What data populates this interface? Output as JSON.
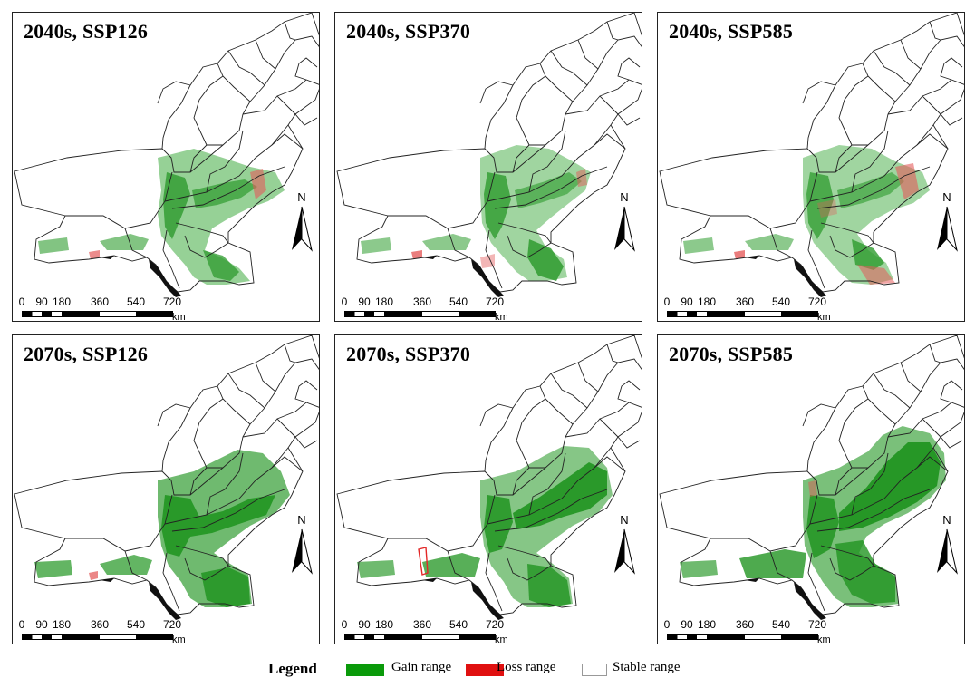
{
  "panels": [
    {
      "title": "2040s, SSP126"
    },
    {
      "title": "2040s, SSP370"
    },
    {
      "title": "2040s, SSP585"
    },
    {
      "title": "2070s, SSP126"
    },
    {
      "title": "2070s, SSP370"
    },
    {
      "title": "2070s, SSP585"
    }
  ],
  "north_arrow": {
    "label": "N"
  },
  "scale_bar": {
    "ticks": [
      "0",
      "90",
      "180",
      "360",
      "540",
      "720"
    ],
    "unit": "km"
  },
  "legend": {
    "title": "Legend",
    "items": [
      {
        "label": "Gain range",
        "color": "#0a9a0a"
      },
      {
        "label": "Loss range",
        "color": "#e01010"
      },
      {
        "label": "Stable range",
        "color": "#ffffff"
      }
    ]
  }
}
